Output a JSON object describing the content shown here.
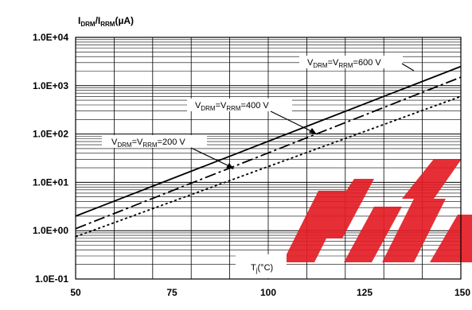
{
  "chart_data": {
    "type": "line",
    "title": "",
    "xlabel": "Tj(°C)",
    "ylabel": "IDRM/IRRM(µA)",
    "x_scale": "linear",
    "y_scale": "log",
    "xlim": [
      50,
      150
    ],
    "ylim": [
      0.1,
      10000
    ],
    "x_ticks": [
      50,
      75,
      100,
      125,
      150
    ],
    "x_tick_labels": [
      "50",
      "75",
      "100",
      "125",
      "150"
    ],
    "y_ticks": [
      0.1,
      1,
      10,
      100,
      1000,
      10000
    ],
    "y_tick_labels": [
      "1.0E-01",
      "1.0E+00",
      "1.0E+01",
      "1.0E+02",
      "1.0E+03",
      "1.0E+04"
    ],
    "grid": true,
    "series": [
      {
        "name": "VDRM=VRRM=600 V",
        "style": "solid",
        "x": [
          50,
          150
        ],
        "y": [
          2.0,
          2500
        ]
      },
      {
        "name": "VDRM=VRRM=400 V",
        "style": "dashdot",
        "x": [
          50,
          150
        ],
        "y": [
          1.1,
          1500
        ]
      },
      {
        "name": "VDRM=VRRM=200 V",
        "style": "dotted",
        "x": [
          50,
          150
        ],
        "y": [
          0.75,
          600
        ]
      }
    ],
    "annotations": [
      {
        "base": "V",
        "sub1": "DRM",
        "mid": "=V",
        "sub2": "RRM",
        "tail": "=600 V"
      },
      {
        "base": "V",
        "sub1": "DRM",
        "mid": "=V",
        "sub2": "RRM",
        "tail": "=400 V"
      },
      {
        "base": "V",
        "sub1": "DRM",
        "mid": "=V",
        "sub2": "RRM",
        "tail": "=200 V"
      }
    ],
    "ylabel_parts": {
      "a": "I",
      "a_sub": "DRM",
      "b": "/I",
      "b_sub": "RRM",
      "c": "(µA)"
    },
    "xlabel_parts": {
      "a": "T",
      "a_sub": "j",
      "b": "(°C)"
    }
  }
}
